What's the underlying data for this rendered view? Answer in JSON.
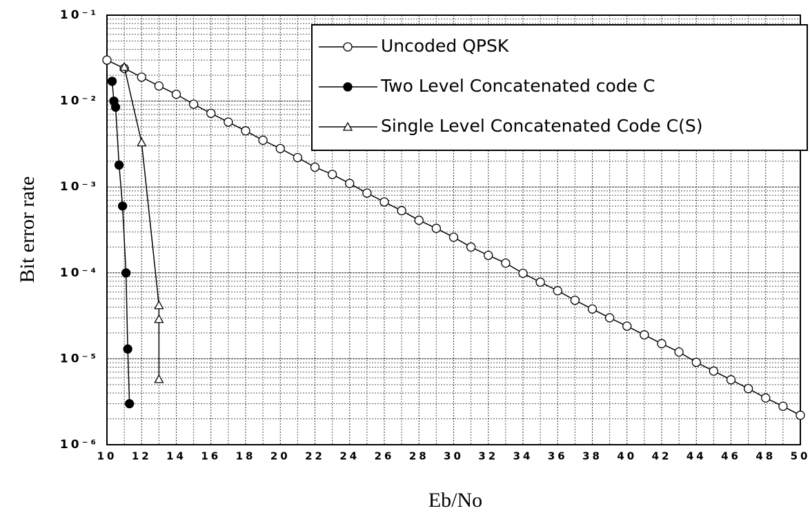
{
  "chart_data": {
    "type": "line",
    "ylabel": "Bit error rate",
    "xlabel": "Eb/No",
    "log_y": true,
    "grid": true,
    "minor_grid": true,
    "legend": "upper right",
    "xlim": [
      10,
      50
    ],
    "xticks": [
      10,
      12,
      14,
      16,
      18,
      20,
      22,
      24,
      26,
      28,
      30,
      32,
      34,
      36,
      38,
      40,
      42,
      44,
      46,
      48,
      50
    ],
    "ylim": [
      1e-06,
      0.1
    ],
    "yticks": [
      {
        "value": 0.1,
        "label": "10⁻¹"
      },
      {
        "value": 0.01,
        "label": "10⁻²"
      },
      {
        "value": 0.001,
        "label": "10⁻³"
      },
      {
        "value": 0.0001,
        "label": "10⁻⁴"
      },
      {
        "value": 1e-05,
        "label": "10⁻⁵"
      },
      {
        "value": 1e-06,
        "label": "10⁻⁶"
      }
    ],
    "series": [
      {
        "name": "Uncoded QPSK",
        "color": "#000000",
        "marker": "open-circle",
        "x": [
          10,
          11,
          12,
          13,
          14,
          15,
          16,
          17,
          18,
          19,
          20,
          21,
          22,
          23,
          24,
          25,
          26,
          27,
          28,
          29,
          30,
          31,
          32,
          33,
          34,
          35,
          36,
          37,
          38,
          39,
          40,
          41,
          42,
          43,
          44,
          45,
          46,
          47,
          48,
          49,
          50
        ],
        "values": [
          0.03,
          0.024,
          0.019,
          0.015,
          0.012,
          0.0092,
          0.0072,
          0.0057,
          0.0045,
          0.0035,
          0.0028,
          0.0022,
          0.0017,
          0.0014,
          0.0011,
          0.00085,
          0.00067,
          0.00053,
          0.00041,
          0.00033,
          0.00026,
          0.0002,
          0.00016,
          0.00013,
          9.9e-05,
          7.8e-05,
          6.2e-05,
          4.8e-05,
          3.8e-05,
          3e-05,
          2.4e-05,
          1.9e-05,
          1.5e-05,
          1.2e-05,
          9.1e-06,
          7.2e-06,
          5.7e-06,
          4.5e-06,
          3.5e-06,
          2.8e-06,
          2.2e-06
        ]
      },
      {
        "name": "Two Level Concatenated code C",
        "color": "#000000",
        "marker": "filled-circle",
        "x": [
          10.3,
          10.4,
          10.5,
          10.7,
          10.9,
          11.1,
          11.2,
          11.3
        ],
        "values": [
          0.017,
          0.01,
          0.0085,
          0.0018,
          0.0006,
          0.0001,
          1.3e-05,
          3e-06
        ]
      },
      {
        "name": "Single Level Concatenated Code C(S)",
        "color": "#000000",
        "marker": "open-triangle",
        "x": [
          11,
          12,
          13,
          13,
          13
        ],
        "values": [
          0.025,
          0.0033,
          4.2e-05,
          2.9e-05,
          5.8e-06
        ]
      }
    ]
  }
}
